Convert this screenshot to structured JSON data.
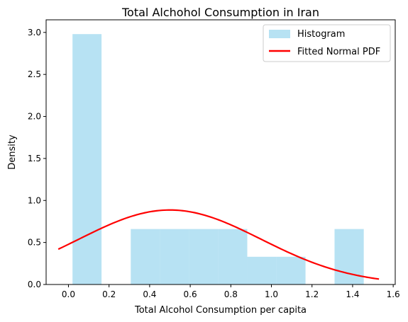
{
  "chart_data": {
    "type": "bar",
    "title": "Total Alchohol Consumption in Iran",
    "xlabel": "Total Alcohol Consumption per capita",
    "ylabel": "Density",
    "xlim": [
      -0.11,
      1.61
    ],
    "ylim": [
      0,
      3.15
    ],
    "xticks": [
      0.0,
      0.2,
      0.4,
      0.6,
      0.8,
      1.0,
      1.2,
      1.4,
      1.6
    ],
    "xtick_labels": [
      "0.0",
      "0.2",
      "0.4",
      "0.6",
      "0.8",
      "1.0",
      "1.2",
      "1.4",
      "1.6"
    ],
    "yticks": [
      0.0,
      0.5,
      1.0,
      1.5,
      2.0,
      2.5,
      3.0
    ],
    "ytick_labels": [
      "0.0",
      "0.5",
      "1.0",
      "1.5",
      "2.0",
      "2.5",
      "3.0"
    ],
    "grid": false,
    "legend_position": "top-right",
    "series": [
      {
        "name": "Histogram",
        "kind": "histogram",
        "color": "#87ceeb",
        "bins": [
          {
            "x0": 0.02,
            "x1": 0.163,
            "density": 2.98
          },
          {
            "x0": 0.163,
            "x1": 0.307,
            "density": 0.0
          },
          {
            "x0": 0.307,
            "x1": 0.45,
            "density": 0.66
          },
          {
            "x0": 0.45,
            "x1": 0.594,
            "density": 0.66
          },
          {
            "x0": 0.594,
            "x1": 0.737,
            "density": 0.66
          },
          {
            "x0": 0.737,
            "x1": 0.881,
            "density": 0.66
          },
          {
            "x0": 0.881,
            "x1": 1.024,
            "density": 0.33
          },
          {
            "x0": 1.024,
            "x1": 1.168,
            "density": 0.33
          },
          {
            "x0": 1.168,
            "x1": 1.311,
            "density": 0.0
          },
          {
            "x0": 1.311,
            "x1": 1.455,
            "density": 0.66
          }
        ]
      },
      {
        "name": "Fitted Normal PDF",
        "kind": "line",
        "color": "#ff0000",
        "distribution": "normal",
        "mean": 0.5,
        "std": 0.45,
        "x_range": [
          -0.05,
          1.53
        ]
      }
    ]
  }
}
